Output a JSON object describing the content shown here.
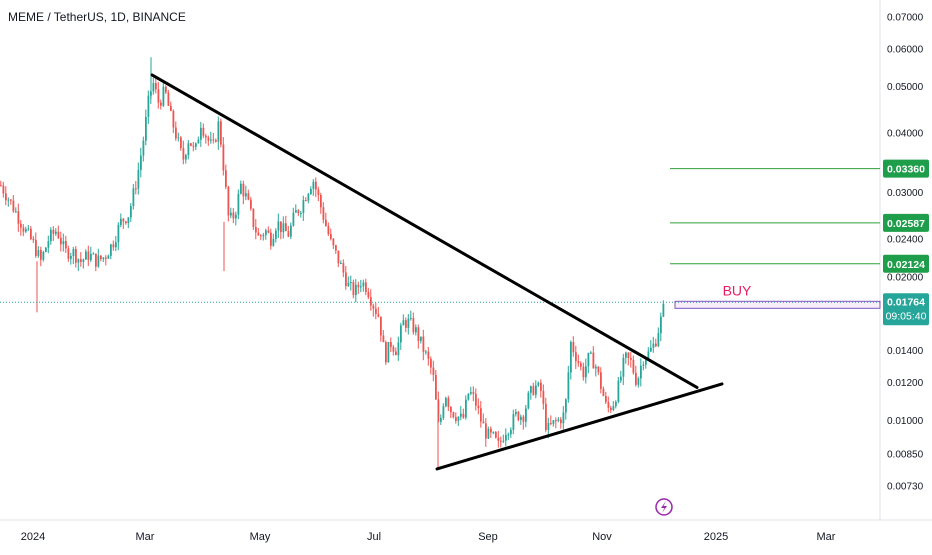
{
  "chart_data": {
    "type": "candlestick",
    "title": "MEME / TetherUS, 1D, BINANCE",
    "x_axis": {
      "tick_labels": [
        "2024",
        "Mar",
        "May",
        "Jul",
        "Sep",
        "Nov",
        "2025",
        "Mar"
      ]
    },
    "y_axis": {
      "scale": "log",
      "range": [
        0.0069,
        0.0722
      ],
      "tick_labels": [
        "0.07000",
        "0.06000",
        "0.05000",
        "0.04000",
        "0.03000",
        "0.02400",
        "0.02000",
        "0.01400",
        "0.01200",
        "0.01000",
        "0.00850",
        "0.00730"
      ],
      "tick_values": [
        0.07,
        0.06,
        0.05,
        0.04,
        0.03,
        0.024,
        0.02,
        0.014,
        0.012,
        0.01,
        0.0085,
        0.0073
      ]
    },
    "current_price": {
      "value": 0.01764,
      "label": "0.01764",
      "countdown": "09:05:40"
    },
    "target_levels": [
      {
        "value": 0.0336,
        "label": "0.03360"
      },
      {
        "value": 0.02587,
        "label": "0.02587"
      },
      {
        "value": 0.02124,
        "label": "0.02124"
      }
    ],
    "annotation": {
      "text": "BUY",
      "color": "#e91e63"
    },
    "price_path": [
      [
        0,
        0.031
      ],
      [
        8,
        0.029
      ],
      [
        16,
        0.027
      ],
      [
        24,
        0.025
      ],
      [
        32,
        0.0235
      ],
      [
        40,
        0.0215
      ],
      [
        48,
        0.024
      ],
      [
        56,
        0.025
      ],
      [
        64,
        0.0225
      ],
      [
        72,
        0.0225
      ],
      [
        80,
        0.0215
      ],
      [
        88,
        0.0222
      ],
      [
        96,
        0.0215
      ],
      [
        104,
        0.022
      ],
      [
        112,
        0.0235
      ],
      [
        120,
        0.026
      ],
      [
        128,
        0.027
      ],
      [
        136,
        0.032
      ],
      [
        142,
        0.038
      ],
      [
        148,
        0.047
      ],
      [
        152,
        0.051
      ],
      [
        158,
        0.046
      ],
      [
        164,
        0.049
      ],
      [
        170,
        0.043
      ],
      [
        176,
        0.039
      ],
      [
        182,
        0.035
      ],
      [
        188,
        0.039
      ],
      [
        194,
        0.036
      ],
      [
        200,
        0.042
      ],
      [
        206,
        0.039
      ],
      [
        212,
        0.037
      ],
      [
        218,
        0.042
      ],
      [
        222,
        0.035
      ],
      [
        228,
        0.026
      ],
      [
        234,
        0.027
      ],
      [
        240,
        0.031
      ],
      [
        246,
        0.029
      ],
      [
        252,
        0.026
      ],
      [
        258,
        0.024
      ],
      [
        264,
        0.025
      ],
      [
        270,
        0.024
      ],
      [
        276,
        0.026
      ],
      [
        282,
        0.025
      ],
      [
        288,
        0.0245
      ],
      [
        294,
        0.027
      ],
      [
        300,
        0.028
      ],
      [
        306,
        0.03
      ],
      [
        312,
        0.032
      ],
      [
        318,
        0.029
      ],
      [
        324,
        0.026
      ],
      [
        330,
        0.0235
      ],
      [
        336,
        0.022
      ],
      [
        342,
        0.0205
      ],
      [
        348,
        0.019
      ],
      [
        354,
        0.0185
      ],
      [
        360,
        0.0195
      ],
      [
        366,
        0.019
      ],
      [
        372,
        0.0175
      ],
      [
        378,
        0.0165
      ],
      [
        384,
        0.0135
      ],
      [
        390,
        0.0145
      ],
      [
        396,
        0.014
      ],
      [
        402,
        0.016
      ],
      [
        408,
        0.016
      ],
      [
        414,
        0.0155
      ],
      [
        420,
        0.0145
      ],
      [
        426,
        0.0135
      ],
      [
        432,
        0.0125
      ],
      [
        438,
        0.0095
      ],
      [
        444,
        0.0115
      ],
      [
        450,
        0.0105
      ],
      [
        456,
        0.0102
      ],
      [
        462,
        0.01
      ],
      [
        468,
        0.0115
      ],
      [
        474,
        0.011
      ],
      [
        480,
        0.01
      ],
      [
        486,
        0.0093
      ],
      [
        492,
        0.0092
      ],
      [
        498,
        0.0088
      ],
      [
        504,
        0.0095
      ],
      [
        510,
        0.0098
      ],
      [
        516,
        0.0103
      ],
      [
        522,
        0.0102
      ],
      [
        528,
        0.0112
      ],
      [
        534,
        0.0118
      ],
      [
        540,
        0.0115
      ],
      [
        546,
        0.0095
      ],
      [
        552,
        0.0098
      ],
      [
        558,
        0.01
      ],
      [
        564,
        0.0103
      ],
      [
        570,
        0.0145
      ],
      [
        576,
        0.0135
      ],
      [
        582,
        0.0125
      ],
      [
        588,
        0.0135
      ],
      [
        594,
        0.0132
      ],
      [
        600,
        0.0118
      ],
      [
        606,
        0.0105
      ],
      [
        612,
        0.0108
      ],
      [
        618,
        0.0118
      ],
      [
        624,
        0.0135
      ],
      [
        630,
        0.0132
      ],
      [
        636,
        0.012
      ],
      [
        642,
        0.0135
      ],
      [
        648,
        0.0138
      ],
      [
        654,
        0.0145
      ],
      [
        660,
        0.0162
      ],
      [
        664,
        0.0176
      ]
    ],
    "trendlines": [
      {
        "name": "descending-resistance",
        "from": [
          152,
          0.0528
        ],
        "to": [
          697,
          0.0117
        ]
      },
      {
        "name": "ascending-support",
        "from": [
          437,
          0.0079
        ],
        "to": [
          722,
          0.0119
        ]
      }
    ]
  }
}
